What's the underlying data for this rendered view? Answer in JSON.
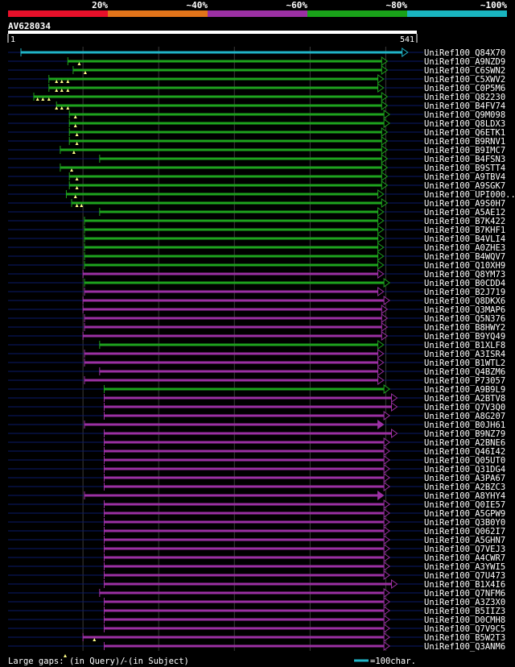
{
  "legend": {
    "colors": [
      "#e8102a",
      "#e2741a",
      "#9b30a3",
      "#19a219",
      "#19b5c0"
    ],
    "labels": [
      "20%",
      "~40%",
      "~60%",
      "~80%",
      "~100%"
    ]
  },
  "query": {
    "name": "AV628034",
    "start_label": "1",
    "end_label": "541",
    "length": 541
  },
  "colors": {
    "query_line": "#20b5c8",
    "green": "#1ea31e",
    "purple": "#9b30a3",
    "grid": "#3a3a3a",
    "baseline": "#0a1a6a",
    "marker": "#ffff88"
  },
  "footer": {
    "gaps_prefix": "Large gaps: ",
    "gaps_query": "(in Query)/",
    "gaps_dash": "-",
    "gaps_subject": " (in Subject)",
    "scale_label": "=100char."
  },
  "hits": [
    {
      "label": "UniRef100_Q84X70",
      "color": "query",
      "start": 18,
      "end": 529,
      "arrow": "out",
      "tri": []
    },
    {
      "label": "UniRef100_A9NZD9",
      "color": "green",
      "start": 80,
      "end": 502,
      "arrow": "out",
      "tri": [
        95
      ]
    },
    {
      "label": "UniRef100_C6SWN2",
      "color": "green",
      "start": 87,
      "end": 502,
      "arrow": "out",
      "tri": [
        103
      ]
    },
    {
      "label": "UniRef100_C5XWV2",
      "color": "green",
      "start": 55,
      "end": 497,
      "arrow": "out",
      "tri": [
        65,
        72,
        80
      ]
    },
    {
      "label": "UniRef100_C0P5M6",
      "color": "green",
      "start": 55,
      "end": 497,
      "arrow": "out",
      "tri": [
        65,
        72,
        80
      ]
    },
    {
      "label": "UniRef100_Q82230",
      "color": "green",
      "start": 35,
      "end": 502,
      "arrow": "out",
      "tri": [
        40,
        47,
        55
      ]
    },
    {
      "label": "UniRef100_B4FV74",
      "color": "green",
      "start": 65,
      "end": 502,
      "arrow": "out",
      "tri": [
        65,
        72,
        80
      ]
    },
    {
      "label": "UniRef100_Q9M098",
      "color": "green",
      "start": 82,
      "end": 505,
      "arrow": "out",
      "tri": [
        90
      ]
    },
    {
      "label": "UniRef100_Q8LDX3",
      "color": "green",
      "start": 82,
      "end": 505,
      "arrow": "out",
      "tri": [
        90
      ]
    },
    {
      "label": "UniRef100_Q6ETK1",
      "color": "green",
      "start": 82,
      "end": 502,
      "arrow": "out",
      "tri": [
        92
      ]
    },
    {
      "label": "UniRef100_B9RNV1",
      "color": "green",
      "start": 82,
      "end": 502,
      "arrow": "out",
      "tri": [
        92
      ]
    },
    {
      "label": "UniRef100_B9IMC7",
      "color": "green",
      "start": 70,
      "end": 502,
      "arrow": "out",
      "tri": [
        88
      ]
    },
    {
      "label": "UniRef100_B4FSN3",
      "color": "green",
      "start": 122,
      "end": 502,
      "arrow": "out",
      "tri": []
    },
    {
      "label": "UniRef100_B9STT4",
      "color": "green",
      "start": 70,
      "end": 502,
      "arrow": "out",
      "tri": [
        85
      ]
    },
    {
      "label": "UniRef100_A9TBV4",
      "color": "green",
      "start": 82,
      "end": 502,
      "arrow": "out",
      "tri": [
        92
      ]
    },
    {
      "label": "UniRef100_A9SGK7",
      "color": "green",
      "start": 82,
      "end": 502,
      "arrow": "out",
      "tri": [
        92
      ]
    },
    {
      "label": "UniRef100_UPI000..",
      "color": "green",
      "start": 78,
      "end": 497,
      "arrow": "out",
      "tri": [
        90
      ]
    },
    {
      "label": "UniRef100_A9S0H7",
      "color": "green",
      "start": 85,
      "end": 502,
      "arrow": "out",
      "tri": [
        92,
        98
      ]
    },
    {
      "label": "UniRef100_A5AE12",
      "color": "green",
      "start": 122,
      "end": 497,
      "arrow": "out",
      "tri": []
    },
    {
      "label": "UniRef100_B7K422",
      "color": "green",
      "start": 102,
      "end": 497,
      "arrow": "out",
      "tri": []
    },
    {
      "label": "UniRef100_B7KHF1",
      "color": "green",
      "start": 102,
      "end": 497,
      "arrow": "out",
      "tri": []
    },
    {
      "label": "UniRef100_B4VLI4",
      "color": "green",
      "start": 102,
      "end": 497,
      "arrow": "out",
      "tri": []
    },
    {
      "label": "UniRef100_A0ZHE3",
      "color": "green",
      "start": 102,
      "end": 497,
      "arrow": "out",
      "tri": []
    },
    {
      "label": "UniRef100_B4WQV7",
      "color": "green",
      "start": 102,
      "end": 497,
      "arrow": "out",
      "tri": []
    },
    {
      "label": "UniRef100_Q10XH9",
      "color": "green",
      "start": 102,
      "end": 497,
      "arrow": "out",
      "tri": []
    },
    {
      "label": "UniRef100_Q8YM73",
      "color": "purple",
      "start": 100,
      "end": 497,
      "arrow": "out",
      "tri": []
    },
    {
      "label": "UniRef100_B0CDD4",
      "color": "green",
      "start": 102,
      "end": 505,
      "arrow": "out",
      "tri": []
    },
    {
      "label": "UniRef100_B2J719",
      "color": "purple",
      "start": 102,
      "end": 497,
      "arrow": "out",
      "tri": []
    },
    {
      "label": "UniRef100_Q8DKX6",
      "color": "purple",
      "start": 100,
      "end": 505,
      "arrow": "out",
      "tri": []
    },
    {
      "label": "UniRef100_Q3MAP6",
      "color": "purple",
      "start": 100,
      "end": 502,
      "arrow": "out",
      "tri": []
    },
    {
      "label": "UniRef100_Q5N376",
      "color": "purple",
      "start": 102,
      "end": 502,
      "arrow": "out",
      "tri": []
    },
    {
      "label": "UniRef100_B8HWY2",
      "color": "purple",
      "start": 102,
      "end": 502,
      "arrow": "out",
      "tri": []
    },
    {
      "label": "UniRef100_B9YQ49",
      "color": "purple",
      "start": 100,
      "end": 502,
      "arrow": "out",
      "tri": []
    },
    {
      "label": "UniRef100_B1XLF8",
      "color": "green",
      "start": 122,
      "end": 497,
      "arrow": "out",
      "tri": []
    },
    {
      "label": "UniRef100_A3ISR4",
      "color": "purple",
      "start": 102,
      "end": 497,
      "arrow": "out",
      "tri": []
    },
    {
      "label": "UniRef100_B1WTL2",
      "color": "purple",
      "start": 102,
      "end": 497,
      "arrow": "out",
      "tri": []
    },
    {
      "label": "UniRef100_Q4BZM6",
      "color": "purple",
      "start": 122,
      "end": 497,
      "arrow": "out",
      "tri": []
    },
    {
      "label": "UniRef100_P73057",
      "color": "purple",
      "start": 102,
      "end": 497,
      "arrow": "out",
      "tri": []
    },
    {
      "label": "UniRef100_A9B9L9",
      "color": "green",
      "start": 128,
      "end": 505,
      "arrow": "out",
      "tri": []
    },
    {
      "label": "UniRef100_A2BTV8",
      "color": "purple",
      "start": 128,
      "end": 515,
      "arrow": "out",
      "tri": []
    },
    {
      "label": "UniRef100_Q7V3Q0",
      "color": "purple",
      "start": 128,
      "end": 515,
      "arrow": "out",
      "tri": []
    },
    {
      "label": "UniRef100_A8G207",
      "color": "purple",
      "start": 128,
      "end": 505,
      "arrow": "out",
      "tri": []
    },
    {
      "label": "UniRef100_B0JH61",
      "color": "purple",
      "start": 102,
      "end": 497,
      "arrow": "in",
      "tri": []
    },
    {
      "label": "UniRef100_B9NZ79",
      "color": "purple",
      "start": 128,
      "end": 515,
      "arrow": "out",
      "tri": []
    },
    {
      "label": "UniRef100_A2BNE6",
      "color": "purple",
      "start": 128,
      "end": 505,
      "arrow": "out",
      "tri": []
    },
    {
      "label": "UniRef100_Q46I42",
      "color": "purple",
      "start": 128,
      "end": 505,
      "arrow": "out",
      "tri": []
    },
    {
      "label": "UniRef100_Q05UT0",
      "color": "purple",
      "start": 128,
      "end": 505,
      "arrow": "out",
      "tri": []
    },
    {
      "label": "UniRef100_Q31DG4",
      "color": "purple",
      "start": 128,
      "end": 505,
      "arrow": "out",
      "tri": []
    },
    {
      "label": "UniRef100_A3PA67",
      "color": "purple",
      "start": 128,
      "end": 505,
      "arrow": "out",
      "tri": []
    },
    {
      "label": "UniRef100_A2BZC3",
      "color": "purple",
      "start": 128,
      "end": 505,
      "arrow": "out",
      "tri": []
    },
    {
      "label": "UniRef100_A8YHY4",
      "color": "purple",
      "start": 102,
      "end": 497,
      "arrow": "in",
      "tri": []
    },
    {
      "label": "UniRef100_Q0IE57",
      "color": "purple",
      "start": 128,
      "end": 505,
      "arrow": "out",
      "tri": []
    },
    {
      "label": "UniRef100_A5GPW9",
      "color": "purple",
      "start": 128,
      "end": 505,
      "arrow": "out",
      "tri": []
    },
    {
      "label": "UniRef100_Q3B0Y0",
      "color": "purple",
      "start": 128,
      "end": 505,
      "arrow": "out",
      "tri": []
    },
    {
      "label": "UniRef100_Q062I7",
      "color": "purple",
      "start": 128,
      "end": 505,
      "arrow": "out",
      "tri": []
    },
    {
      "label": "UniRef100_A5GHN7",
      "color": "purple",
      "start": 128,
      "end": 505,
      "arrow": "out",
      "tri": []
    },
    {
      "label": "UniRef100_Q7VEJ3",
      "color": "purple",
      "start": 128,
      "end": 505,
      "arrow": "out",
      "tri": []
    },
    {
      "label": "UniRef100_A4CWR7",
      "color": "purple",
      "start": 128,
      "end": 505,
      "arrow": "out",
      "tri": []
    },
    {
      "label": "UniRef100_A3YWI5",
      "color": "purple",
      "start": 128,
      "end": 505,
      "arrow": "out",
      "tri": []
    },
    {
      "label": "UniRef100_Q7U473",
      "color": "purple",
      "start": 128,
      "end": 505,
      "arrow": "out",
      "tri": []
    },
    {
      "label": "UniRef100_B1X4I6",
      "color": "purple",
      "start": 128,
      "end": 515,
      "arrow": "out",
      "tri": []
    },
    {
      "label": "UniRef100_Q7NFM6",
      "color": "purple",
      "start": 122,
      "end": 505,
      "arrow": "out",
      "tri": []
    },
    {
      "label": "UniRef100_A3Z3X0",
      "color": "purple",
      "start": 128,
      "end": 505,
      "arrow": "out",
      "tri": []
    },
    {
      "label": "UniRef100_B5IIZ3",
      "color": "purple",
      "start": 128,
      "end": 505,
      "arrow": "out",
      "tri": []
    },
    {
      "label": "UniRef100_D0CMH8",
      "color": "purple",
      "start": 128,
      "end": 505,
      "arrow": "out",
      "tri": []
    },
    {
      "label": "UniRef100_Q7V9C5",
      "color": "purple",
      "start": 128,
      "end": 505,
      "arrow": "out",
      "tri": []
    },
    {
      "label": "UniRef100_B5W2T3",
      "color": "purple",
      "start": 100,
      "end": 505,
      "arrow": "out",
      "tri": [
        115
      ]
    },
    {
      "label": "UniRef100_Q3ANM6",
      "color": "purple",
      "start": 128,
      "end": 505,
      "arrow": "out",
      "tri": []
    }
  ]
}
